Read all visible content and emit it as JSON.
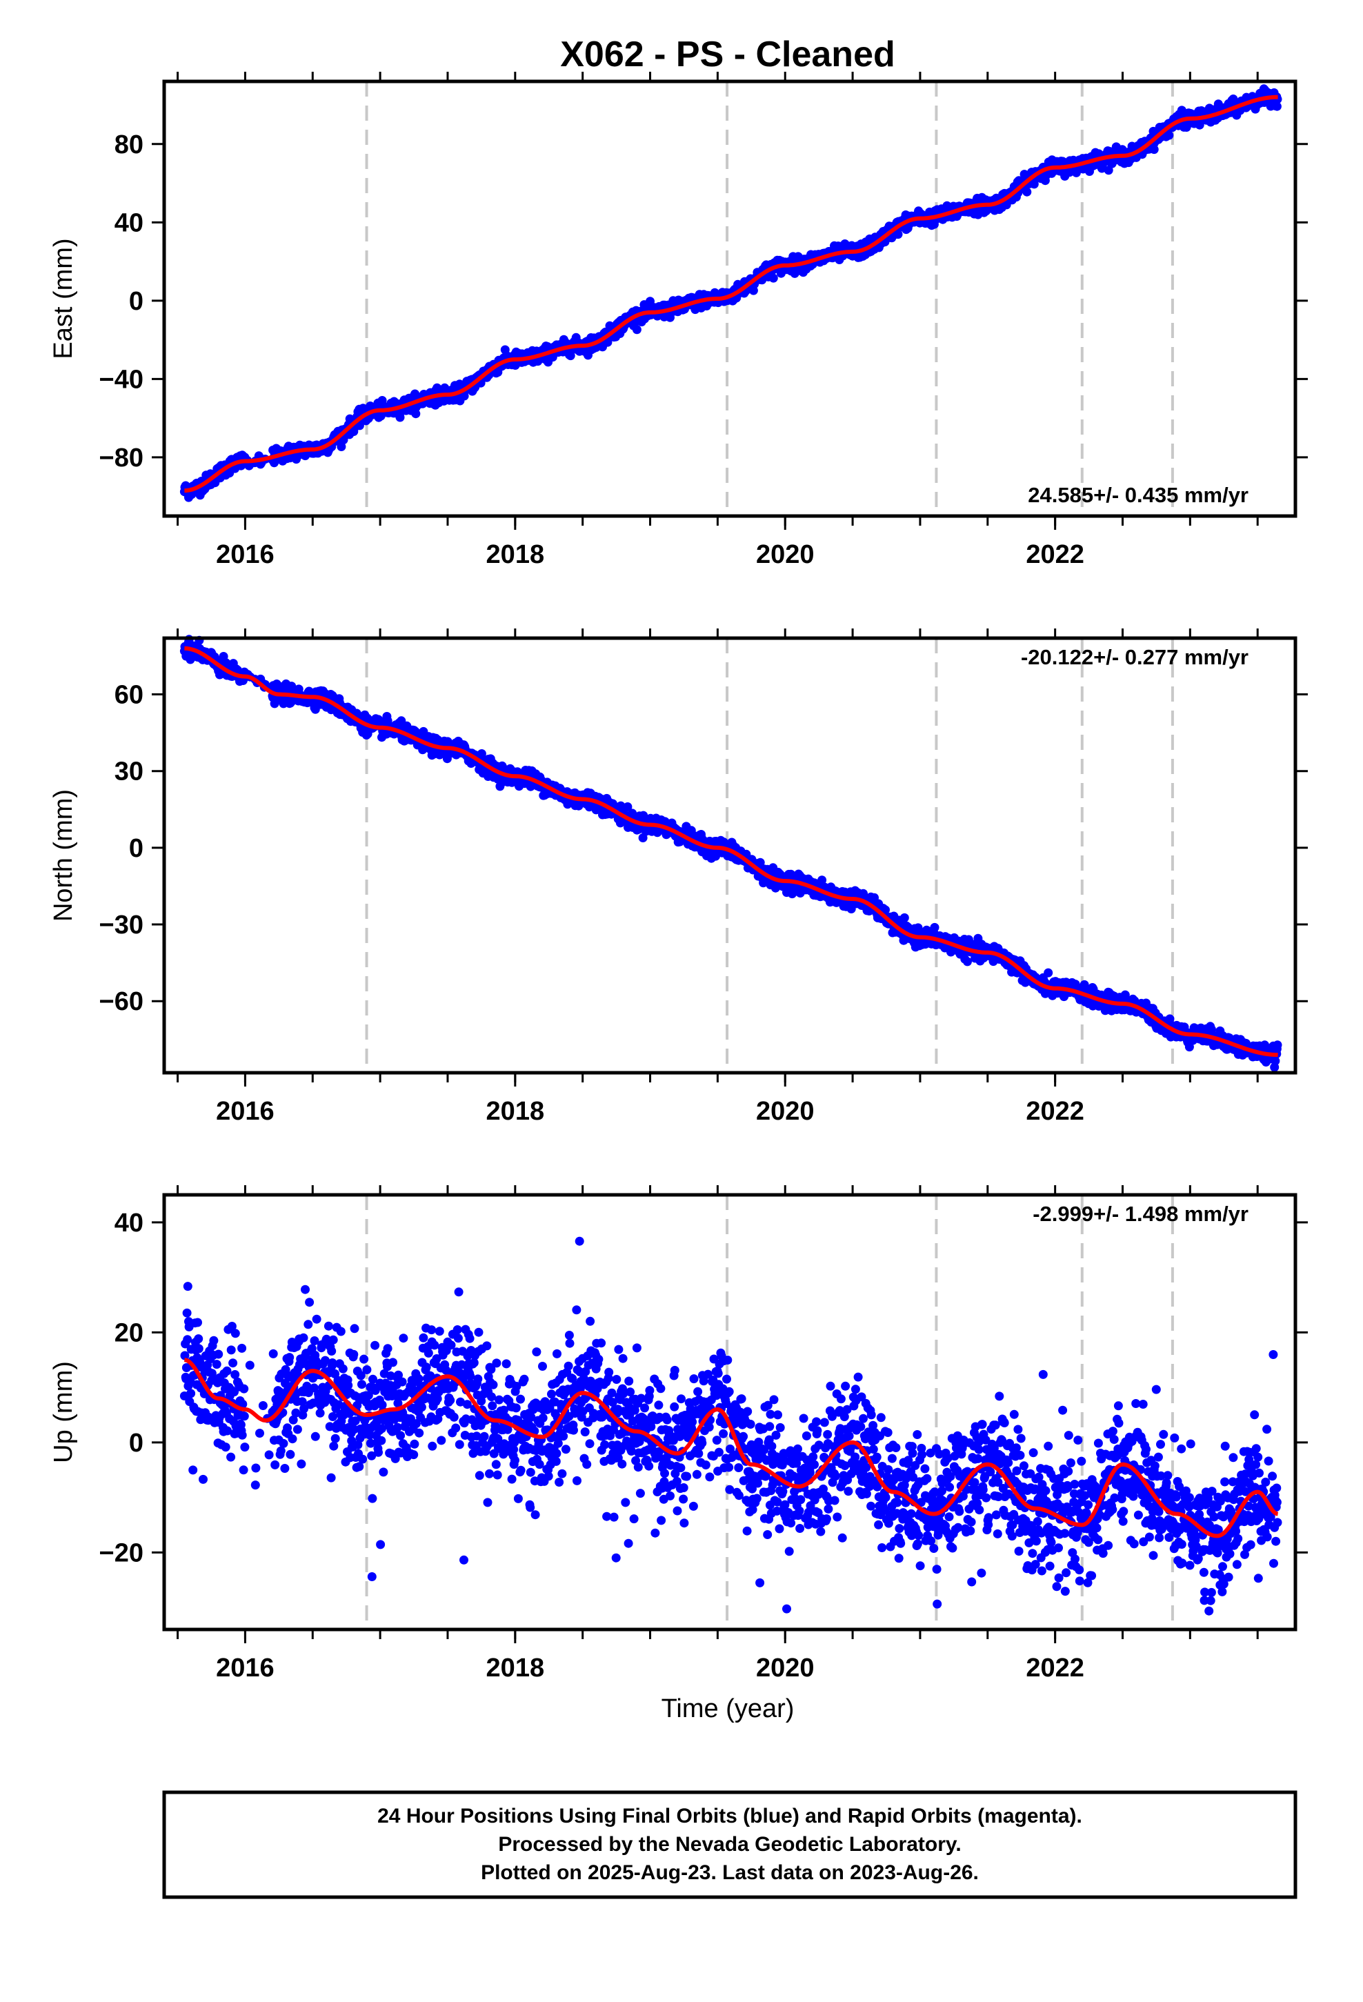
{
  "title": "X062  - PS - Cleaned",
  "xlabel": "Time (year)",
  "footer": [
    "24 Hour Positions Using Final Orbits (blue) and Rapid Orbits (magenta).",
    "Processed by the Nevada Geodetic Laboratory.",
    "Plotted on 2025-Aug-23. Last data on 2023-Aug-26."
  ],
  "colors": {
    "points": "#0000ff",
    "fit": "#ff0000",
    "event_lines": "#c8c8c8",
    "frame": "#000000"
  },
  "chart_data": [
    {
      "type": "scatter",
      "panel": "east",
      "ylabel": "East (mm)",
      "rate_label": "24.585+/- 0.435 mm/yr",
      "xlim": [
        2015.4,
        2023.78
      ],
      "ylim": [
        -110,
        112
      ],
      "x_ticks": [
        2016,
        2018,
        2020,
        2022
      ],
      "y_ticks": [
        -80,
        -40,
        0,
        40,
        80
      ],
      "event_lines_x": [
        2016.9,
        2019.57,
        2021.12,
        2022.2,
        2022.87
      ],
      "grid": false,
      "model": {
        "start": 2015.55,
        "end": 2023.65,
        "intercept_at_2019": -3.0,
        "slope": 24.585,
        "annual_amp": 2.2,
        "annual_phase": 0.0,
        "semiannual_amp": 0.8,
        "offsets": [
          {
            "x": 2016.9,
            "size": 0
          },
          {
            "x": 2019.57,
            "size": 0
          },
          {
            "x": 2021.12,
            "size": 0
          },
          {
            "x": 2022.2,
            "size": 0
          },
          {
            "x": 2022.87,
            "size": 0
          }
        ]
      },
      "fit_line": {
        "x": [
          2015.55,
          2016.0,
          2016.5,
          2017.0,
          2017.5,
          2018.0,
          2018.5,
          2019.0,
          2019.5,
          2020.0,
          2020.5,
          2021.0,
          2021.5,
          2022.0,
          2022.5,
          2023.0,
          2023.65
        ],
        "y": [
          -97,
          -82,
          -76,
          -56,
          -48,
          -30,
          -23,
          -6,
          1,
          18,
          25,
          42,
          49,
          68,
          74,
          93,
          104
        ]
      },
      "noise_sigma": 1.8,
      "gaps": [
        [
          2016.0,
          2016.2
        ]
      ]
    },
    {
      "type": "scatter",
      "panel": "north",
      "ylabel": "North (mm)",
      "rate_label": "-20.122+/- 0.277 mm/yr",
      "xlim": [
        2015.4,
        2023.78
      ],
      "ylim": [
        -88,
        82
      ],
      "x_ticks": [
        2016,
        2018,
        2020,
        2022
      ],
      "y_ticks": [
        -60,
        -30,
        0,
        30,
        60
      ],
      "event_lines_x": [
        2016.9,
        2019.57,
        2021.12,
        2022.2,
        2022.87
      ],
      "grid": false,
      "fit_line": {
        "x": [
          2015.55,
          2016.0,
          2016.25,
          2016.5,
          2017.0,
          2017.5,
          2018.0,
          2018.5,
          2019.0,
          2019.5,
          2020.0,
          2020.5,
          2021.0,
          2021.5,
          2022.0,
          2022.5,
          2023.0,
          2023.65
        ],
        "y": [
          78,
          67,
          60,
          59,
          47,
          39,
          28,
          19,
          9,
          0,
          -13,
          -20,
          -35,
          -41,
          -55,
          -61,
          -73,
          -81
        ]
      },
      "noise_sigma": 1.6,
      "gaps": [
        [
          2016.0,
          2016.2
        ]
      ]
    },
    {
      "type": "scatter",
      "panel": "up",
      "ylabel": "Up (mm)",
      "rate_label": "-2.999+/- 1.498 mm/yr",
      "xlim": [
        2015.4,
        2023.78
      ],
      "ylim": [
        -34,
        45
      ],
      "x_ticks": [
        2016,
        2018,
        2020,
        2022
      ],
      "y_ticks": [
        -20,
        0,
        20,
        40
      ],
      "event_lines_x": [
        2016.9,
        2019.57,
        2021.12,
        2022.2,
        2022.87
      ],
      "grid": false,
      "fit_line": {
        "x": [
          2015.55,
          2015.8,
          2016.0,
          2016.15,
          2016.5,
          2016.9,
          2017.1,
          2017.5,
          2017.85,
          2018.2,
          2018.5,
          2018.9,
          2019.2,
          2019.5,
          2019.75,
          2020.1,
          2020.5,
          2020.8,
          2021.1,
          2021.5,
          2021.85,
          2022.2,
          2022.5,
          2022.9,
          2023.2,
          2023.5,
          2023.65
        ],
        "y": [
          15,
          8,
          6,
          4,
          13,
          5,
          6,
          12,
          4,
          1,
          9,
          2,
          -2,
          6,
          -4,
          -8,
          0,
          -9,
          -13,
          -4,
          -12,
          -15,
          -4,
          -13,
          -17,
          -9,
          -13
        ]
      },
      "noise_sigma": 5.5,
      "gaps": [
        [
          2016.0,
          2016.2
        ]
      ]
    }
  ]
}
